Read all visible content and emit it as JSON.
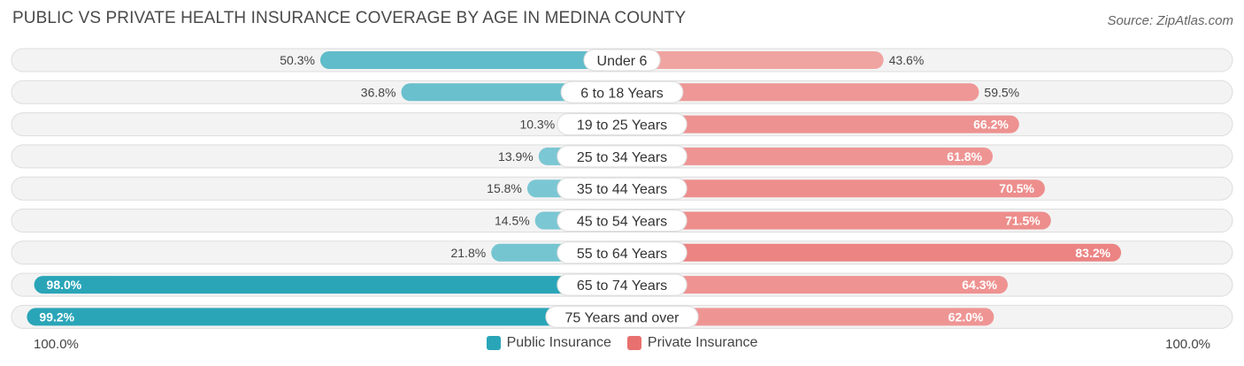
{
  "title": "PUBLIC VS PRIVATE HEALTH INSURANCE COVERAGE BY AGE IN MEDINA COUNTY",
  "source": "Source: ZipAtlas.com",
  "chart_data": {
    "type": "bar",
    "orientation": "horizontal-diverging",
    "categories": [
      "Under 6",
      "6 to 18 Years",
      "19 to 25 Years",
      "25 to 34 Years",
      "35 to 44 Years",
      "45 to 54 Years",
      "55 to 64 Years",
      "65 to 74 Years",
      "75 Years and over"
    ],
    "series": [
      {
        "name": "Public Insurance",
        "color": "#2aa5b8",
        "values": [
          50.3,
          36.8,
          10.3,
          13.9,
          15.8,
          14.5,
          21.8,
          98.0,
          99.2
        ],
        "labels": [
          "50.3%",
          "36.8%",
          "10.3%",
          "13.9%",
          "15.8%",
          "14.5%",
          "21.8%",
          "98.0%",
          "99.2%"
        ]
      },
      {
        "name": "Private Insurance",
        "color": "#e8706e",
        "values": [
          43.6,
          59.5,
          66.2,
          61.8,
          70.5,
          71.5,
          83.2,
          64.3,
          62.0
        ],
        "labels": [
          "43.6%",
          "59.5%",
          "66.2%",
          "61.8%",
          "70.5%",
          "71.5%",
          "83.2%",
          "64.3%",
          "62.0%"
        ]
      }
    ],
    "xlim": [
      -100,
      100
    ],
    "axis_left_label": "100.0%",
    "axis_right_label": "100.0%",
    "legend_position": "bottom-center"
  }
}
